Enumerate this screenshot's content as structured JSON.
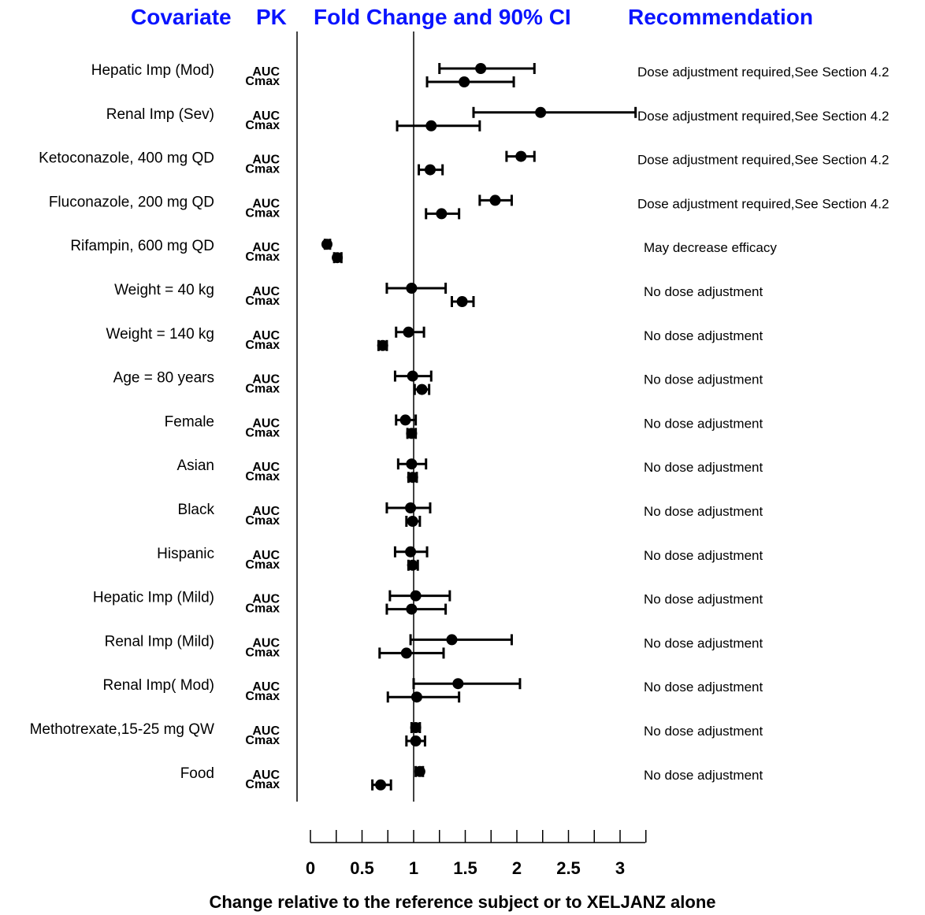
{
  "headers": {
    "covariate": "Covariate",
    "pk": "PK",
    "fold": "Fold Change and 90% CI",
    "recommendation": "Recommendation"
  },
  "chart_data": {
    "type": "forest",
    "xlabel": "Change relative to the reference subject or to XELJANZ alone",
    "xlim": [
      0,
      3.25
    ],
    "xticks": [
      "0",
      "0.5",
      "1",
      "1.5",
      "2",
      "2.5",
      "3"
    ],
    "reference_line": 1,
    "rows": [
      {
        "covariate": "Hepatic Imp (Mod)",
        "recommendation": "Dose adjustment required,See Section 4.2",
        "auc": {
          "label": "AUC",
          "est": 1.65,
          "lo": 1.25,
          "hi": 2.17
        },
        "cmax": {
          "label": "Cmax",
          "est": 1.49,
          "lo": 1.13,
          "hi": 1.97
        }
      },
      {
        "covariate": "Renal Imp (Sev)",
        "recommendation": "Dose adjustment required,See Section 4.2",
        "auc": {
          "label": "AUC",
          "est": 2.23,
          "lo": 1.58,
          "hi": 3.15
        },
        "cmax": {
          "label": "Cmax",
          "est": 1.17,
          "lo": 0.84,
          "hi": 1.64
        }
      },
      {
        "covariate": "Ketoconazole, 400 mg QD",
        "recommendation": "Dose adjustment required,See Section 4.2",
        "auc": {
          "label": "AUC",
          "est": 2.04,
          "lo": 1.9,
          "hi": 2.17
        },
        "cmax": {
          "label": "Cmax",
          "est": 1.16,
          "lo": 1.05,
          "hi": 1.28
        }
      },
      {
        "covariate": "Fluconazole, 200 mg QD",
        "recommendation": "Dose adjustment required,See Section 4.2",
        "auc": {
          "label": "AUC",
          "est": 1.79,
          "lo": 1.64,
          "hi": 1.95
        },
        "cmax": {
          "label": "Cmax",
          "est": 1.27,
          "lo": 1.12,
          "hi": 1.44
        }
      },
      {
        "covariate": "Rifampin, 600 mg QD",
        "recommendation": "May decrease efficacy",
        "auc": {
          "label": "AUC",
          "est": 0.16,
          "lo": 0.14,
          "hi": 0.19
        },
        "cmax": {
          "label": "Cmax",
          "est": 0.26,
          "lo": 0.23,
          "hi": 0.3
        }
      },
      {
        "covariate": "Weight = 40 kg",
        "recommendation": "No dose adjustment",
        "auc": {
          "label": "AUC",
          "est": 0.98,
          "lo": 0.74,
          "hi": 1.31
        },
        "cmax": {
          "label": "Cmax",
          "est": 1.47,
          "lo": 1.37,
          "hi": 1.58
        }
      },
      {
        "covariate": "Weight = 140 kg",
        "recommendation": "No dose adjustment",
        "auc": {
          "label": "AUC",
          "est": 0.95,
          "lo": 0.83,
          "hi": 1.1
        },
        "cmax": {
          "label": "Cmax",
          "est": 0.7,
          "lo": 0.66,
          "hi": 0.74
        }
      },
      {
        "covariate": "Age = 80 years",
        "recommendation": "No dose adjustment",
        "auc": {
          "label": "AUC",
          "est": 0.99,
          "lo": 0.82,
          "hi": 1.17
        },
        "cmax": {
          "label": "Cmax",
          "est": 1.08,
          "lo": 1.01,
          "hi": 1.15
        }
      },
      {
        "covariate": "Female",
        "recommendation": "No dose adjustment",
        "auc": {
          "label": "AUC",
          "est": 0.92,
          "lo": 0.83,
          "hi": 1.02
        },
        "cmax": {
          "label": "Cmax",
          "est": 0.98,
          "lo": 0.94,
          "hi": 1.02
        }
      },
      {
        "covariate": "Asian",
        "recommendation": "No dose adjustment",
        "auc": {
          "label": "AUC",
          "est": 0.98,
          "lo": 0.85,
          "hi": 1.12
        },
        "cmax": {
          "label": "Cmax",
          "est": 0.99,
          "lo": 0.95,
          "hi": 1.03
        }
      },
      {
        "covariate": "Black",
        "recommendation": "No dose adjustment",
        "auc": {
          "label": "AUC",
          "est": 0.97,
          "lo": 0.74,
          "hi": 1.16
        },
        "cmax": {
          "label": "Cmax",
          "est": 0.99,
          "lo": 0.93,
          "hi": 1.06
        }
      },
      {
        "covariate": "Hispanic",
        "recommendation": "No dose adjustment",
        "auc": {
          "label": "AUC",
          "est": 0.97,
          "lo": 0.82,
          "hi": 1.13
        },
        "cmax": {
          "label": "Cmax",
          "est": 0.99,
          "lo": 0.95,
          "hi": 1.04
        }
      },
      {
        "covariate": "Hepatic Imp (Mild)",
        "recommendation": "No dose adjustment",
        "auc": {
          "label": "AUC",
          "est": 1.02,
          "lo": 0.77,
          "hi": 1.35
        },
        "cmax": {
          "label": "Cmax",
          "est": 0.98,
          "lo": 0.74,
          "hi": 1.31
        }
      },
      {
        "covariate": "Renal Imp (Mild)",
        "recommendation": "No dose adjustment",
        "auc": {
          "label": "AUC",
          "est": 1.37,
          "lo": 0.97,
          "hi": 1.95
        },
        "cmax": {
          "label": "Cmax",
          "est": 0.93,
          "lo": 0.67,
          "hi": 1.29
        }
      },
      {
        "covariate": "Renal Imp( Mod)",
        "recommendation": "No dose adjustment",
        "auc": {
          "label": "AUC",
          "est": 1.43,
          "lo": 1.0,
          "hi": 2.03
        },
        "cmax": {
          "label": "Cmax",
          "est": 1.03,
          "lo": 0.75,
          "hi": 1.44
        }
      },
      {
        "covariate": "Methotrexate,15-25 mg QW",
        "recommendation": "No dose adjustment",
        "auc": {
          "label": "AUC",
          "est": 1.02,
          "lo": 0.98,
          "hi": 1.06
        },
        "cmax": {
          "label": "Cmax",
          "est": 1.02,
          "lo": 0.93,
          "hi": 1.11
        }
      },
      {
        "covariate": "Food",
        "recommendation": "No dose adjustment",
        "auc": {
          "label": "AUC",
          "est": 1.06,
          "lo": 1.02,
          "hi": 1.09
        },
        "cmax": {
          "label": "Cmax",
          "est": 0.68,
          "lo": 0.6,
          "hi": 0.78
        }
      }
    ]
  }
}
